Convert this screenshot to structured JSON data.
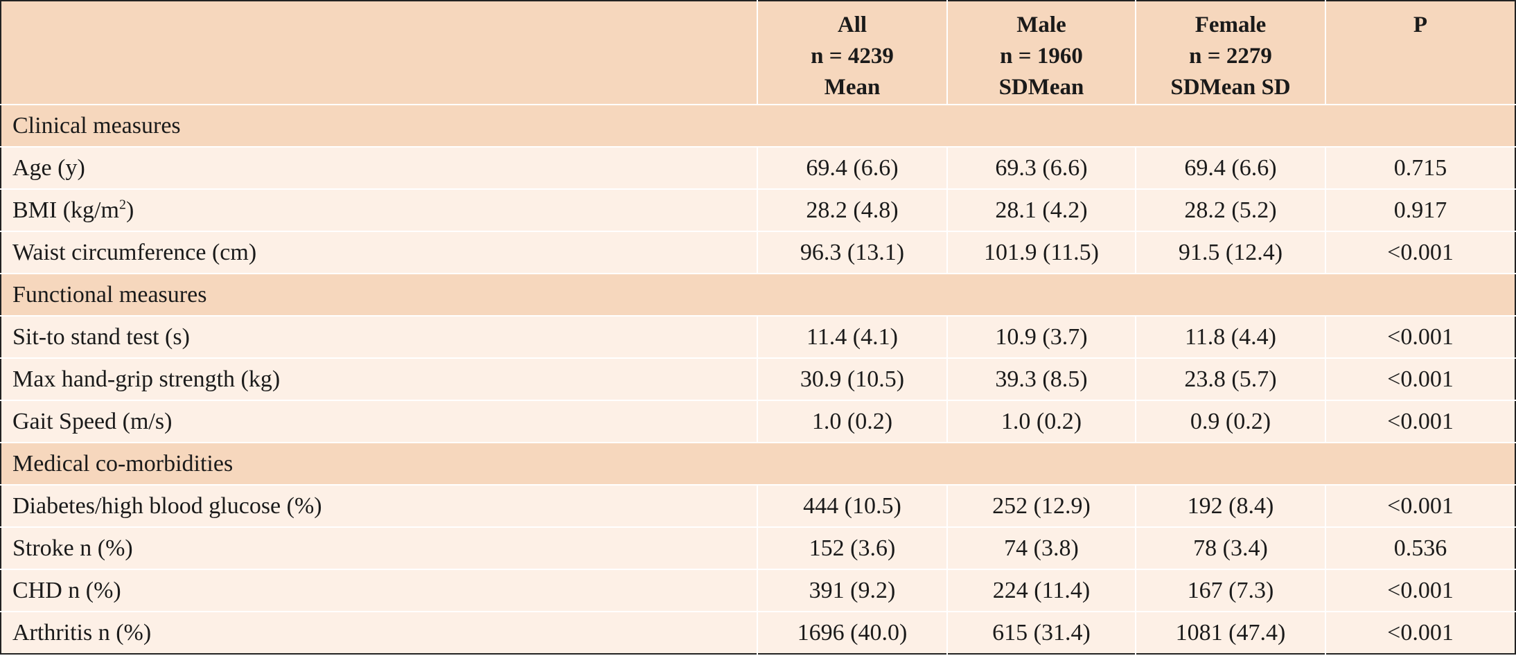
{
  "header": {
    "columns": [
      {
        "lines": []
      },
      {
        "lines": [
          "All",
          "n = 4239",
          "Mean"
        ]
      },
      {
        "lines": [
          "Male",
          "n = 1960",
          "SDMean"
        ]
      },
      {
        "lines": [
          "Female",
          "n = 2279",
          "SDMean SD"
        ]
      },
      {
        "lines": [
          "P"
        ]
      }
    ]
  },
  "sections": [
    {
      "title": "Clinical measures",
      "rows": [
        {
          "label": "Age (y)",
          "values": [
            "69.4 (6.6)",
            "69.3 (6.6)",
            "69.4 (6.6)",
            "0.715"
          ]
        },
        {
          "label": "BMI (kg/m",
          "label_sup": "2",
          "label_after": ")",
          "values": [
            "28.2 (4.8)",
            "28.1 (4.2)",
            "28.2 (5.2)",
            "0.917"
          ]
        },
        {
          "label": "Waist circumference (cm)",
          "values": [
            "96.3 (13.1)",
            "101.9 (11.5)",
            "91.5 (12.4)",
            "<0.001"
          ]
        }
      ]
    },
    {
      "title": "Functional measures",
      "rows": [
        {
          "label": "Sit-to stand test (s)",
          "values": [
            "11.4 (4.1)",
            "10.9 (3.7)",
            "11.8 (4.4)",
            "<0.001"
          ]
        },
        {
          "label": "Max hand-grip strength (kg)",
          "values": [
            "30.9 (10.5)",
            "39.3 (8.5)",
            "23.8 (5.7)",
            "<0.001"
          ]
        },
        {
          "label": "Gait Speed (m/s)",
          "values": [
            "1.0 (0.2)",
            "1.0 (0.2)",
            "0.9 (0.2)",
            "<0.001"
          ]
        }
      ]
    },
    {
      "title": "Medical co-morbidities",
      "rows": [
        {
          "label": "Diabetes/high blood glucose (%)",
          "values": [
            "444 (10.5)",
            "252 (12.9)",
            "192 (8.4)",
            "<0.001"
          ]
        },
        {
          "label": "Stroke n (%)",
          "values": [
            "152 (3.6)",
            "74 (3.8)",
            "78 (3.4)",
            "0.536"
          ]
        },
        {
          "label": "CHD n (%)",
          "values": [
            "391 (9.2)",
            "224 (11.4)",
            "167 (7.3)",
            "<0.001"
          ]
        },
        {
          "label": "Arthritis n (%)",
          "values": [
            "1696 (40.0)",
            "615 (31.4)",
            "1081 (47.4)",
            "<0.001"
          ]
        }
      ]
    }
  ]
}
